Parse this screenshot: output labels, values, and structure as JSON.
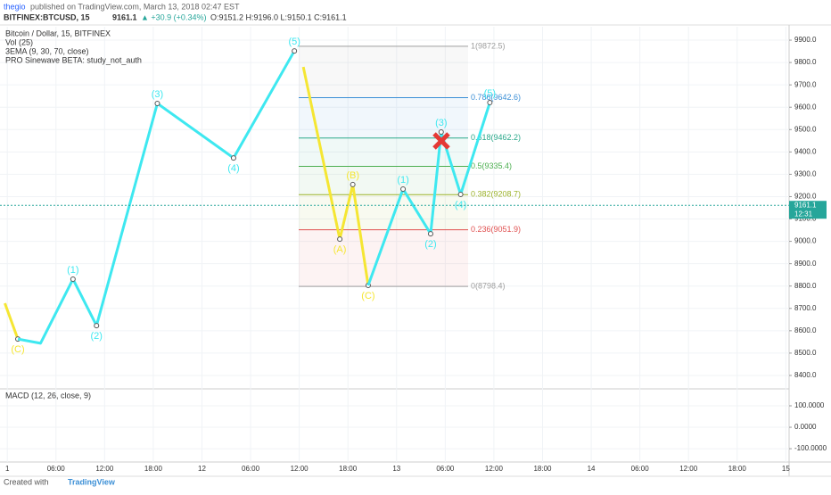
{
  "header": {
    "author": "thegio",
    "published": "published on TradingView.com, March 13, 2018 02:47 EST"
  },
  "ticker": {
    "symbol": "BITFINEX:BTCUSD, 15",
    "last": "9161.1",
    "change": "▲ +30.9 (+0.34%)",
    "ohlc": "O:9151.2 H:9196.0 L:9150.1 C:9161.1"
  },
  "chart_data": [
    {
      "type": "line",
      "title": "Bitcoin / Dollar, 15, BITFINEX",
      "studies": [
        "Vol (25)",
        "3EMA (9, 30, 70, close)",
        "PRO Sinewave BETA: study_not_auth"
      ],
      "xlim": [
        -0.9,
        96.4
      ],
      "ylim": [
        8340,
        9960
      ],
      "xticks": [
        {
          "value": 0,
          "label": "1"
        },
        {
          "value": 6,
          "label": "06:00"
        },
        {
          "value": 12,
          "label": "12:00"
        },
        {
          "value": 18,
          "label": "18:00"
        },
        {
          "value": 24,
          "label": "12"
        },
        {
          "value": 30,
          "label": "06:00"
        },
        {
          "value": 36,
          "label": "12:00"
        },
        {
          "value": 42,
          "label": "18:00"
        },
        {
          "value": 48,
          "label": "13"
        },
        {
          "value": 54,
          "label": "06:00"
        },
        {
          "value": 60,
          "label": "12:00"
        },
        {
          "value": 66,
          "label": "18:00"
        },
        {
          "value": 72,
          "label": "14"
        },
        {
          "value": 78,
          "label": "06:00"
        },
        {
          "value": 84,
          "label": "12:00"
        },
        {
          "value": 90,
          "label": "18:00"
        },
        {
          "value": 96,
          "label": "15"
        }
      ],
      "yticks": [
        {
          "value": 8400,
          "label": "8400.0"
        },
        {
          "value": 8500,
          "label": "8500.0"
        },
        {
          "value": 8600,
          "label": "8600.0"
        },
        {
          "value": 8700,
          "label": "8700.0"
        },
        {
          "value": 8800,
          "label": "8800.0"
        },
        {
          "value": 8900,
          "label": "8900.0"
        },
        {
          "value": 9000,
          "label": "9000.0"
        },
        {
          "value": 9100,
          "label": "9100.0"
        },
        {
          "value": 9200,
          "label": "9200.0"
        },
        {
          "value": 9300,
          "label": "9300.0"
        },
        {
          "value": 9400,
          "label": "9400.0"
        },
        {
          "value": 9500,
          "label": "9500.0"
        },
        {
          "value": 9600,
          "label": "9600.0"
        },
        {
          "value": 9700,
          "label": "9700.0"
        },
        {
          "value": 9800,
          "label": "9800.0"
        },
        {
          "value": 9900,
          "label": "9900.0"
        }
      ],
      "grid": true,
      "series": [
        {
          "color": "#f5e633",
          "x": [
            -0.3,
            1.3
          ],
          "values": [
            8723,
            8563
          ],
          "labels": [
            null,
            "(C)"
          ]
        },
        {
          "color": "#3ee8f0",
          "x": [
            1.3,
            4.1,
            8.1,
            11.0,
            18.5,
            27.9,
            35.4
          ],
          "values": [
            8563,
            8544,
            8831,
            8623,
            9617,
            9373,
            9852
          ],
          "labels": [
            null,
            null,
            "(1)",
            "(2)",
            "(3)",
            "(4)",
            "(5)"
          ]
        },
        {
          "color": "#f5e633",
          "x": [
            36.5,
            41.0,
            42.6,
            44.5
          ],
          "values": [
            9780,
            9010,
            9254,
            8803
          ],
          "labels": [
            null,
            "(A)",
            "(B)",
            "(C)"
          ]
        },
        {
          "color": "#3ee8f0",
          "x": [
            44.5,
            48.8,
            52.2,
            53.5,
            55.9,
            59.5
          ],
          "values": [
            8803,
            9234,
            9034,
            9489,
            9210,
            9621
          ],
          "labels": [
            null,
            "(1)",
            "(2)",
            "(3)",
            "(4)",
            "(5)"
          ]
        }
      ],
      "fib_levels": [
        {
          "value": 9872.5,
          "label": "1(9872.5)",
          "color": "#9e9e9e"
        },
        {
          "value": 9642.6,
          "label": "0.786(9642.6)",
          "color": "#3b8fd6"
        },
        {
          "value": 9462.2,
          "label": "0.618(9462.2)",
          "color": "#2aa88a"
        },
        {
          "value": 9335.4,
          "label": "0.5(9335.4)",
          "color": "#4caf50"
        },
        {
          "value": 9208.7,
          "label": "0.382(9208.7)",
          "color": "#9cb22a"
        },
        {
          "value": 9051.9,
          "label": "0.236(9051.9)",
          "color": "#e05050"
        },
        {
          "value": 8798.4,
          "label": "0(8798.4)",
          "color": "#9e9e9e"
        }
      ],
      "last_price": {
        "value": 9161.1,
        "label": "9161.1"
      },
      "countdown": "12:31"
    },
    {
      "type": "indicator",
      "title": "MACD (12, 26, close, 9)",
      "ylim": [
        -162,
        179
      ],
      "yticks": [
        {
          "value": 100,
          "label": "100.0000"
        },
        {
          "value": 0,
          "label": "0.0000"
        },
        {
          "value": -100,
          "label": "-100.0000"
        }
      ]
    }
  ],
  "footer": {
    "created": "Created with",
    "brand": "TradingView"
  }
}
